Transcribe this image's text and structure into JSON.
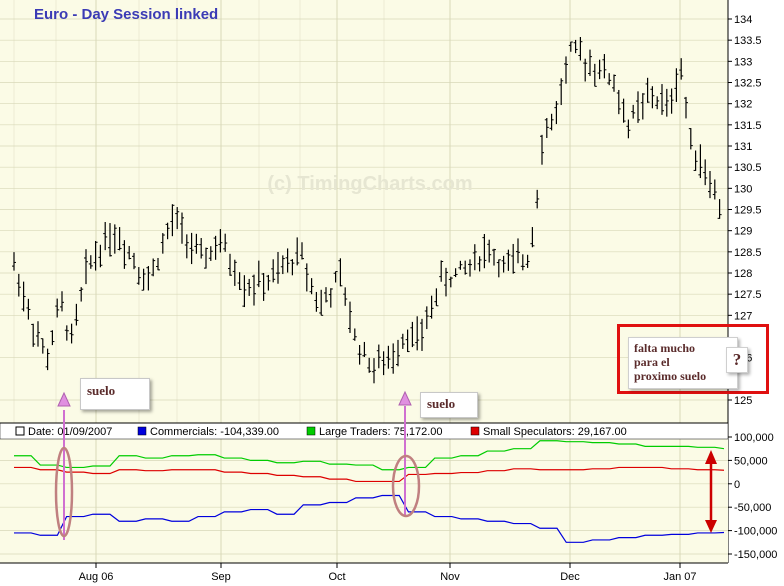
{
  "chart_data": [
    {
      "type": "ohlc",
      "title": "Euro - Day Session linked",
      "watermark": "(c) TimingCharts.com",
      "ylim": [
        125,
        134
      ],
      "y_ticks": [
        "125",
        "126",
        "127",
        "127.5",
        "128",
        "128.5",
        "129",
        "129.5",
        "130",
        "130.5",
        "131",
        "131.5",
        "132",
        "132.5",
        "133",
        "133.5",
        "134"
      ],
      "x_ticks": [
        "Aug 06",
        "Sep",
        "Oct",
        "Nov",
        "Dec",
        "Jan 07"
      ],
      "grid": true,
      "colors": {
        "background": "#fbfbe6",
        "grid": "#d8d8b8",
        "bars": "#000000",
        "title": "#3b3bb5"
      }
    },
    {
      "type": "line",
      "legend": {
        "date": "Date: 01/09/2007",
        "items": [
          {
            "label": "Commercials: -104,339.00",
            "color": "#0000dd"
          },
          {
            "label": "Large Traders: 75,172.00",
            "color": "#00cc00"
          },
          {
            "label": "Small Speculators: 29,167.00",
            "color": "#dd0000"
          }
        ]
      },
      "ylim": [
        -150000,
        100000
      ],
      "y_ticks": [
        "100,000",
        "50,000",
        "0",
        "-50,000",
        "-100,000",
        "-150,000"
      ],
      "series": [
        {
          "name": "Large Traders",
          "color": "#00cc00",
          "values": [
            60000,
            40000,
            35000,
            38000,
            60000,
            55000,
            60000,
            62000,
            55000,
            50000,
            45000,
            48000,
            42000,
            40000,
            30000,
            35000,
            55000,
            60000,
            70000,
            75000,
            92000,
            90000,
            88000,
            85000,
            80000,
            80000,
            78000,
            75000
          ]
        },
        {
          "name": "Small Speculators",
          "color": "#dd0000",
          "values": [
            35000,
            30000,
            25000,
            22000,
            30000,
            28000,
            30000,
            30000,
            25000,
            22000,
            18000,
            15000,
            10000,
            5000,
            5000,
            20000,
            22000,
            24000,
            28000,
            32000,
            30000,
            30000,
            32000,
            35000,
            35000,
            32000,
            30000,
            29000
          ]
        },
        {
          "name": "Commercials",
          "color": "#0000dd",
          "values": [
            -105000,
            -110000,
            -70000,
            -65000,
            -80000,
            -75000,
            -80000,
            -70000,
            -60000,
            -55000,
            -65000,
            -45000,
            -40000,
            -30000,
            -25000,
            -60000,
            -70000,
            -75000,
            -80000,
            -85000,
            -95000,
            -125000,
            -120000,
            -115000,
            -110000,
            -108000,
            -105000,
            -104000
          ]
        }
      ]
    }
  ],
  "annotations": {
    "suelo_1": "suelo",
    "suelo_2": "suelo",
    "note_line1": "falta mucho",
    "note_line2": "para el",
    "note_line3": "proximo suelo",
    "note_question": "?"
  }
}
